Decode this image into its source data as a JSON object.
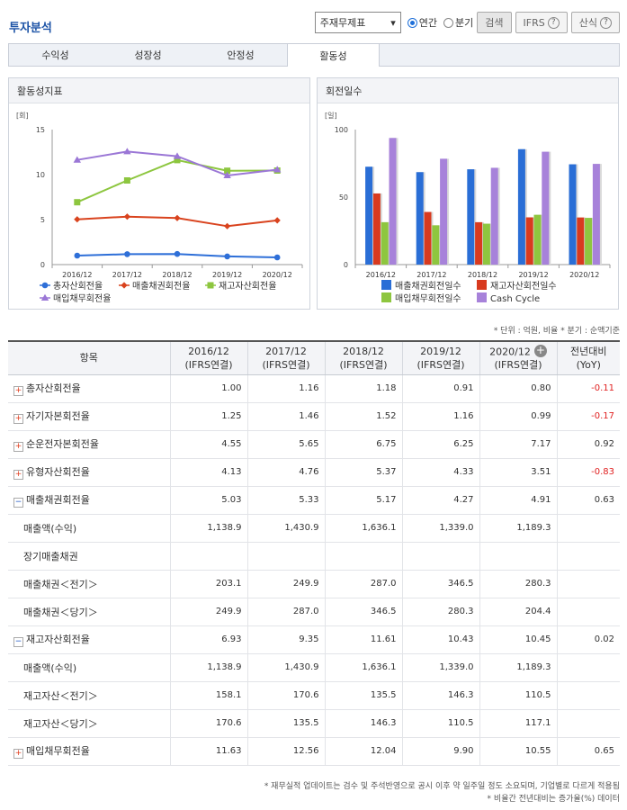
{
  "header": {
    "title": "투자분석",
    "select_value": "주재무제표",
    "radio_annual": "연간",
    "radio_quarter": "분기",
    "search_label": "검색",
    "ifrs_label": "IFRS",
    "formula_label": "산식"
  },
  "tabs": [
    "수익성",
    "성장성",
    "안정성",
    "활동성"
  ],
  "left_chart": {
    "panel_title": "활동성지표",
    "y_unit": "[회]",
    "legend": [
      "총자산회전율",
      "매출채권회전율",
      "재고자산회전율",
      "매입채무회전율"
    ]
  },
  "right_chart": {
    "panel_title": "회전일수",
    "y_unit": "[일]",
    "legend": [
      "매출채권회전일수",
      "재고자산회전일수",
      "매입채무회전일수",
      "Cash Cycle"
    ]
  },
  "chart_data": [
    {
      "type": "line",
      "x": [
        "2016/12",
        "2017/12",
        "2018/12",
        "2019/12",
        "2020/12"
      ],
      "ylim": [
        0,
        15
      ],
      "yticks": [
        0,
        5,
        10,
        15
      ],
      "grid": false,
      "legend_position": "bottom",
      "series": [
        {
          "name": "총자산회전율",
          "color": "#2e6fd8",
          "marker": "circle",
          "values": [
            1.0,
            1.16,
            1.18,
            0.91,
            0.8
          ]
        },
        {
          "name": "매출채권회전율",
          "color": "#d9431e",
          "marker": "diamond",
          "values": [
            5.03,
            5.33,
            5.17,
            4.27,
            4.91
          ]
        },
        {
          "name": "재고자산회전율",
          "color": "#8dc63f",
          "marker": "square",
          "values": [
            6.93,
            9.35,
            11.61,
            10.43,
            10.45
          ]
        },
        {
          "name": "매입채무회전율",
          "color": "#9b77d6",
          "marker": "triangle",
          "values": [
            11.63,
            12.56,
            12.04,
            9.9,
            10.55
          ]
        }
      ]
    },
    {
      "type": "bar",
      "categories": [
        "2016/12",
        "2017/12",
        "2018/12",
        "2019/12",
        "2020/12"
      ],
      "ylim": [
        0,
        100
      ],
      "yticks": [
        0,
        50,
        100
      ],
      "grid": false,
      "legend_position": "bottom",
      "series": [
        {
          "name": "매출채권회전일수",
          "color": "#2a6ed6",
          "values": [
            72.5,
            68.5,
            70.6,
            85.5,
            74.3
          ]
        },
        {
          "name": "재고자산회전일수",
          "color": "#d83a1f",
          "values": [
            52.7,
            39.0,
            31.4,
            35.0,
            34.9
          ]
        },
        {
          "name": "매입채무회전일수",
          "color": "#8ec63f",
          "values": [
            31.4,
            29.1,
            30.3,
            36.9,
            34.6
          ]
        },
        {
          "name": "Cash Cycle",
          "color": "#a782da",
          "values": [
            93.8,
            78.4,
            71.7,
            83.6,
            74.6
          ]
        }
      ]
    }
  ],
  "unit_note": "* 단위 : 억원, 비율   * 분기 : 순액기준",
  "table": {
    "header_item": "항목",
    "periods": [
      {
        "year": "2016/12",
        "basis": "(IFRS연결)"
      },
      {
        "year": "2017/12",
        "basis": "(IFRS연결)"
      },
      {
        "year": "2018/12",
        "basis": "(IFRS연결)"
      },
      {
        "year": "2019/12",
        "basis": "(IFRS연결)"
      },
      {
        "year": "2020/12",
        "basis": "(IFRS연결)"
      }
    ],
    "yoy_header_1": "전년대비",
    "yoy_header_2": "(YoY)",
    "rows": [
      {
        "label": "총자산회전율",
        "toggle": "plus",
        "values": [
          "1.00",
          "1.16",
          "1.18",
          "0.91",
          "0.80"
        ],
        "yoy": "-0.11"
      },
      {
        "label": "자기자본회전율",
        "toggle": "plus",
        "values": [
          "1.25",
          "1.46",
          "1.52",
          "1.16",
          "0.99"
        ],
        "yoy": "-0.17"
      },
      {
        "label": "순운전자본회전율",
        "toggle": "plus",
        "values": [
          "4.55",
          "5.65",
          "6.75",
          "6.25",
          "7.17"
        ],
        "yoy": "0.92"
      },
      {
        "label": "유형자산회전율",
        "toggle": "plus",
        "values": [
          "4.13",
          "4.76",
          "5.37",
          "4.33",
          "3.51"
        ],
        "yoy": "-0.83"
      },
      {
        "label": "매출채권회전율",
        "toggle": "minus",
        "values": [
          "5.03",
          "5.33",
          "5.17",
          "4.27",
          "4.91"
        ],
        "yoy": "0.63"
      },
      {
        "label": "매출액(수익)",
        "toggle": "",
        "values": [
          "1,138.9",
          "1,430.9",
          "1,636.1",
          "1,339.0",
          "1,189.3"
        ],
        "yoy": ""
      },
      {
        "label": "장기매출채권",
        "toggle": "",
        "values": [
          "",
          "",
          "",
          "",
          ""
        ],
        "yoy": ""
      },
      {
        "label": "매출채권＜전기＞",
        "toggle": "",
        "values": [
          "203.1",
          "249.9",
          "287.0",
          "346.5",
          "280.3"
        ],
        "yoy": ""
      },
      {
        "label": "매출채권＜당기＞",
        "toggle": "",
        "values": [
          "249.9",
          "287.0",
          "346.5",
          "280.3",
          "204.4"
        ],
        "yoy": ""
      },
      {
        "label": "재고자산회전율",
        "toggle": "minus",
        "values": [
          "6.93",
          "9.35",
          "11.61",
          "10.43",
          "10.45"
        ],
        "yoy": "0.02"
      },
      {
        "label": "매출액(수익)",
        "toggle": "",
        "values": [
          "1,138.9",
          "1,430.9",
          "1,636.1",
          "1,339.0",
          "1,189.3"
        ],
        "yoy": ""
      },
      {
        "label": "재고자산＜전기＞",
        "toggle": "",
        "values": [
          "158.1",
          "170.6",
          "135.5",
          "146.3",
          "110.5"
        ],
        "yoy": ""
      },
      {
        "label": "재고자산＜당기＞",
        "toggle": "",
        "values": [
          "170.6",
          "135.5",
          "146.3",
          "110.5",
          "117.1"
        ],
        "yoy": ""
      },
      {
        "label": "매입채무회전율",
        "toggle": "plus",
        "values": [
          "11.63",
          "12.56",
          "12.04",
          "9.90",
          "10.55"
        ],
        "yoy": "0.65"
      }
    ]
  },
  "footnotes": [
    "* 재무실적 업데이트는 검수 및 주석반영으로 공시 이후 약 일주일 정도 소요되며, 기업별로 다르게 적용됨",
    "* 비율간 전년대비는 증가율(%) 데이터"
  ]
}
